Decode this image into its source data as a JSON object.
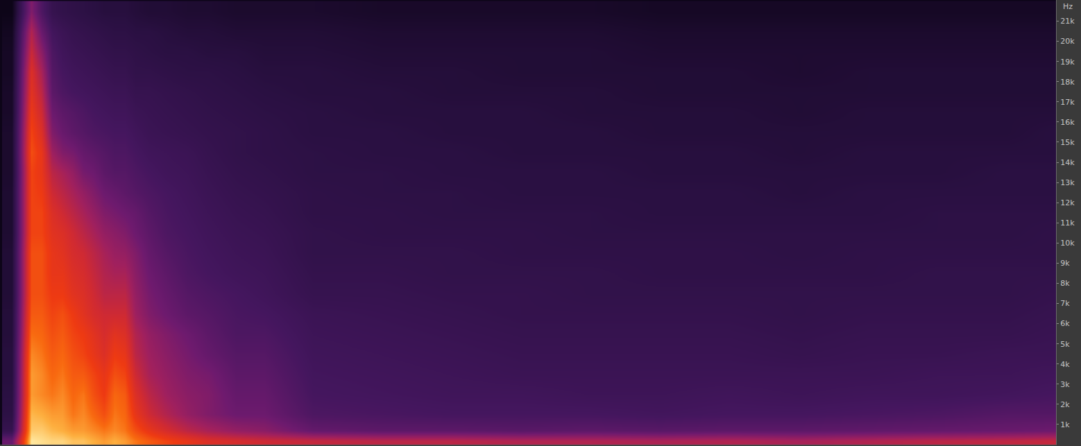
{
  "chart_data": {
    "type": "heatmap",
    "ylabel": "Hz",
    "tick_labels": "y",
    "xlim": [
      0,
      1520
    ],
    "ylim": [
      0,
      22050
    ],
    "yticks": [
      {
        "value": 1000,
        "label": "1k"
      },
      {
        "value": 2000,
        "label": "2k"
      },
      {
        "value": 3000,
        "label": "3k"
      },
      {
        "value": 4000,
        "label": "4k"
      },
      {
        "value": 5000,
        "label": "5k"
      },
      {
        "value": 6000,
        "label": "6k"
      },
      {
        "value": 7000,
        "label": "7k"
      },
      {
        "value": 8000,
        "label": "8k"
      },
      {
        "value": 9000,
        "label": "9k"
      },
      {
        "value": 10000,
        "label": "10k"
      },
      {
        "value": 11000,
        "label": "11k"
      },
      {
        "value": 12000,
        "label": "12k"
      },
      {
        "value": 13000,
        "label": "13k"
      },
      {
        "value": 14000,
        "label": "14k"
      },
      {
        "value": 15000,
        "label": "15k"
      },
      {
        "value": 16000,
        "label": "16k"
      },
      {
        "value": 17000,
        "label": "17k"
      },
      {
        "value": 18000,
        "label": "18k"
      },
      {
        "value": 19000,
        "label": "19k"
      },
      {
        "value": 20000,
        "label": "20k"
      },
      {
        "value": 21000,
        "label": "21k"
      }
    ],
    "x": [
      17,
      45,
      60,
      75,
      90,
      105,
      120,
      135,
      150,
      165,
      180,
      195,
      215,
      240,
      270,
      300,
      340,
      380,
      450,
      550,
      650,
      750,
      850,
      950,
      1050,
      1150,
      1250,
      1350,
      1450,
      1510
    ],
    "y": [
      200,
      700,
      1500,
      2500,
      3500,
      4500,
      5500,
      6500,
      7500,
      8500,
      9500,
      10500,
      11500,
      12500,
      13500,
      14500,
      15500,
      16500,
      17500,
      18500,
      19500,
      20500,
      21500
    ],
    "cells_by_x": [
      [
        45,
        30,
        26,
        25,
        24,
        24,
        23,
        23,
        22,
        22,
        22,
        21,
        21,
        21,
        20,
        20,
        20,
        19,
        19,
        18,
        18,
        17,
        15
      ],
      [
        98,
        95,
        93,
        90,
        90,
        88,
        85,
        82,
        80,
        80,
        80,
        78,
        78,
        78,
        78,
        80,
        78,
        75,
        72,
        70,
        65,
        60,
        50
      ],
      [
        97,
        95,
        92,
        88,
        88,
        86,
        84,
        82,
        80,
        80,
        80,
        78,
        78,
        76,
        74,
        74,
        70,
        66,
        62,
        58,
        52,
        45,
        38
      ],
      [
        96,
        93,
        90,
        86,
        84,
        82,
        80,
        78,
        76,
        74,
        74,
        72,
        70,
        66,
        62,
        56,
        50,
        46,
        42,
        40,
        38,
        35,
        30
      ],
      [
        96,
        92,
        90,
        88,
        86,
        84,
        82,
        80,
        76,
        74,
        72,
        70,
        66,
        62,
        58,
        50,
        45,
        42,
        38,
        36,
        34,
        32,
        28
      ],
      [
        94,
        90,
        86,
        84,
        82,
        80,
        78,
        76,
        72,
        70,
        68,
        66,
        62,
        58,
        54,
        48,
        42,
        40,
        36,
        34,
        32,
        30,
        27
      ],
      [
        94,
        90,
        88,
        86,
        82,
        78,
        76,
        72,
        70,
        68,
        66,
        62,
        58,
        54,
        48,
        44,
        40,
        38,
        35,
        33,
        31,
        29,
        26
      ],
      [
        92,
        88,
        84,
        80,
        78,
        74,
        72,
        68,
        66,
        64,
        62,
        58,
        54,
        50,
        46,
        42,
        38,
        36,
        34,
        32,
        30,
        28,
        25
      ],
      [
        90,
        86,
        80,
        76,
        74,
        70,
        68,
        66,
        62,
        60,
        58,
        54,
        50,
        46,
        42,
        40,
        37,
        35,
        33,
        31,
        29,
        27,
        24
      ],
      [
        92,
        88,
        86,
        84,
        80,
        76,
        72,
        66,
        62,
        58,
        55,
        52,
        48,
        44,
        40,
        38,
        36,
        34,
        32,
        30,
        28,
        26,
        24
      ],
      [
        90,
        86,
        84,
        82,
        78,
        74,
        70,
        66,
        62,
        58,
        54,
        50,
        46,
        42,
        40,
        38,
        36,
        34,
        32,
        30,
        28,
        26,
        24
      ],
      [
        86,
        80,
        74,
        70,
        66,
        62,
        60,
        56,
        54,
        52,
        50,
        46,
        44,
        40,
        38,
        36,
        34,
        32,
        30,
        28,
        27,
        25,
        23
      ],
      [
        82,
        74,
        66,
        62,
        58,
        56,
        54,
        50,
        48,
        46,
        44,
        42,
        40,
        38,
        36,
        34,
        32,
        31,
        30,
        28,
        26,
        25,
        22
      ],
      [
        78,
        68,
        60,
        56,
        54,
        52,
        50,
        46,
        44,
        42,
        40,
        38,
        37,
        36,
        34,
        33,
        31,
        30,
        29,
        27,
        25,
        24,
        22
      ],
      [
        74,
        62,
        54,
        52,
        50,
        48,
        46,
        42,
        40,
        38,
        37,
        36,
        35,
        34,
        33,
        32,
        30,
        29,
        28,
        26,
        25,
        23,
        21
      ],
      [
        70,
        58,
        50,
        50,
        48,
        44,
        42,
        40,
        38,
        36,
        35,
        34,
        33,
        32,
        31,
        30,
        29,
        28,
        27,
        26,
        24,
        23,
        21
      ],
      [
        68,
        54,
        46,
        44,
        42,
        40,
        38,
        37,
        36,
        34,
        33,
        32,
        31,
        30,
        29,
        28,
        28,
        27,
        26,
        25,
        24,
        22,
        20
      ],
      [
        66,
        52,
        46,
        44,
        42,
        40,
        38,
        36,
        34,
        33,
        32,
        31,
        30,
        29,
        28,
        27,
        27,
        26,
        25,
        24,
        23,
        22,
        20
      ],
      [
        64,
        44,
        38,
        36,
        35,
        34,
        33,
        32,
        30,
        29,
        28,
        28,
        27,
        27,
        26,
        26,
        25,
        25,
        24,
        24,
        23,
        22,
        20
      ],
      [
        62,
        42,
        37,
        35,
        34,
        33,
        32,
        31,
        30,
        29,
        28,
        27,
        27,
        26,
        26,
        25,
        25,
        24,
        24,
        23,
        22,
        21,
        19
      ],
      [
        62,
        42,
        36,
        34,
        33,
        32,
        31,
        30,
        29,
        28,
        28,
        27,
        26,
        26,
        25,
        25,
        24,
        24,
        23,
        23,
        22,
        21,
        19
      ],
      [
        60,
        41,
        36,
        34,
        32,
        31,
        30,
        29,
        29,
        28,
        27,
        27,
        26,
        25,
        25,
        24,
        24,
        24,
        23,
        22,
        22,
        21,
        19
      ],
      [
        60,
        42,
        36,
        33,
        32,
        31,
        30,
        29,
        28,
        28,
        27,
        26,
        26,
        25,
        25,
        24,
        24,
        23,
        23,
        22,
        22,
        21,
        19
      ],
      [
        59,
        41,
        35,
        33,
        32,
        31,
        30,
        29,
        28,
        27,
        27,
        26,
        25,
        25,
        24,
        24,
        23,
        23,
        22,
        22,
        21,
        20,
        18
      ],
      [
        60,
        42,
        36,
        34,
        32,
        31,
        30,
        29,
        28,
        27,
        27,
        26,
        25,
        25,
        24,
        24,
        23,
        23,
        22,
        22,
        21,
        20,
        18
      ],
      [
        58,
        42,
        36,
        33,
        32,
        30,
        29,
        28,
        28,
        27,
        26,
        26,
        25,
        24,
        24,
        23,
        23,
        22,
        22,
        21,
        21,
        20,
        18
      ],
      [
        60,
        43,
        37,
        34,
        32,
        31,
        30,
        29,
        28,
        27,
        27,
        26,
        25,
        25,
        24,
        24,
        23,
        23,
        22,
        22,
        21,
        20,
        18
      ],
      [
        62,
        44,
        38,
        34,
        33,
        31,
        30,
        29,
        28,
        28,
        27,
        26,
        26,
        25,
        24,
        24,
        23,
        23,
        22,
        22,
        21,
        20,
        18
      ],
      [
        63,
        45,
        40,
        35,
        33,
        32,
        30,
        29,
        28,
        28,
        27,
        26,
        26,
        25,
        25,
        24,
        23,
        23,
        22,
        22,
        21,
        20,
        18
      ],
      [
        64,
        46,
        40,
        36,
        34,
        32,
        31,
        30,
        29,
        28,
        27,
        27,
        26,
        25,
        25,
        24,
        24,
        23,
        22,
        22,
        21,
        20,
        18
      ]
    ]
  }
}
